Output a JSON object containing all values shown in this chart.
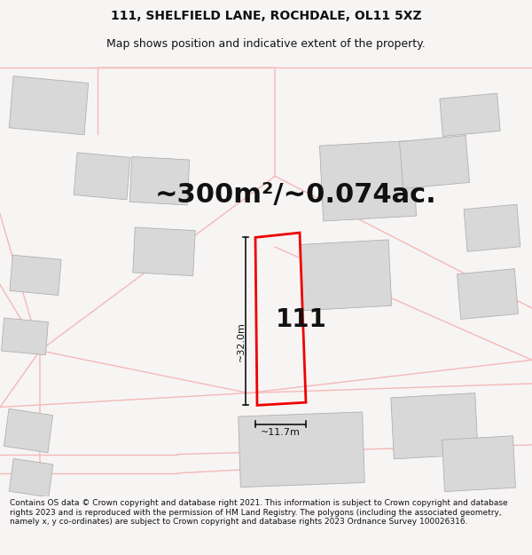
{
  "title_line1": "111, SHELFIELD LANE, ROCHDALE, OL11 5XZ",
  "title_line2": "Map shows position and indicative extent of the property.",
  "area_text": "~300m²/~0.074ac.",
  "plot_number": "111",
  "dim_height": "~32.0m",
  "dim_width": "~11.7m",
  "footer_text": "Contains OS data © Crown copyright and database right 2021. This information is subject to Crown copyright and database rights 2023 and is reproduced with the permission of HM Land Registry. The polygons (including the associated geometry, namely x, y co-ordinates) are subject to Crown copyright and database rights 2023 Ordnance Survey 100026316.",
  "bg_color": "#f7f4f4",
  "map_bg": "#ffffff",
  "building_color": "#d8d8d8",
  "building_edge": "#b0b0b0",
  "road_color": "#f5b8b8",
  "plot_color": "#ee0000",
  "dim_color": "#111111",
  "title_color": "#111111",
  "footer_color": "#111111",
  "road_lw": 1.0,
  "title_fontsize": 10,
  "subtitle_fontsize": 9,
  "area_fontsize": 22,
  "plot_label_fontsize": 20,
  "dim_fontsize": 8,
  "footer_fontsize": 6.5
}
